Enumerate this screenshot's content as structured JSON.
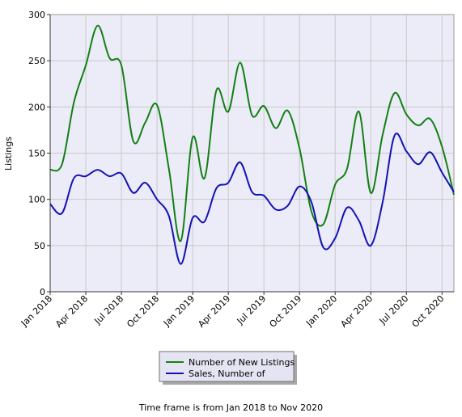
{
  "chart_data": {
    "type": "line",
    "ylabel": "Listings",
    "xlabel": "",
    "ylim": [
      0,
      300
    ],
    "yticks": [
      0,
      50,
      100,
      150,
      200,
      250,
      300
    ],
    "x": [
      "2018-01",
      "2018-02",
      "2018-03",
      "2018-04",
      "2018-05",
      "2018-06",
      "2018-07",
      "2018-08",
      "2018-09",
      "2018-10",
      "2018-11",
      "2018-12",
      "2019-01",
      "2019-02",
      "2019-03",
      "2019-04",
      "2019-05",
      "2019-06",
      "2019-07",
      "2019-08",
      "2019-09",
      "2019-10",
      "2019-11",
      "2019-12",
      "2020-01",
      "2020-02",
      "2020-03",
      "2020-04",
      "2020-05",
      "2020-06",
      "2020-07",
      "2020-08",
      "2020-09",
      "2020-10",
      "2020-11"
    ],
    "xtick_labels": [
      {
        "at": "2018-01",
        "label": "Jan 2018"
      },
      {
        "at": "2018-04",
        "label": "Apr 2018"
      },
      {
        "at": "2018-07",
        "label": "Jul 2018"
      },
      {
        "at": "2018-10",
        "label": "Oct 2018"
      },
      {
        "at": "2019-01",
        "label": "Jan 2019"
      },
      {
        "at": "2019-04",
        "label": "Apr 2019"
      },
      {
        "at": "2019-07",
        "label": "Jul 2019"
      },
      {
        "at": "2019-10",
        "label": "Oct 2019"
      },
      {
        "at": "2020-01",
        "label": "Jan 2020"
      },
      {
        "at": "2020-04",
        "label": "Apr 2020"
      },
      {
        "at": "2020-07",
        "label": "Jul 2020"
      },
      {
        "at": "2020-10",
        "label": "Oct 2020"
      }
    ],
    "series": [
      {
        "name": "Number of New Listings",
        "color": "#138013",
        "values": [
          132,
          138,
          205,
          245,
          288,
          253,
          245,
          163,
          183,
          202,
          133,
          55,
          167,
          123,
          218,
          195,
          248,
          191,
          201,
          177,
          196,
          155,
          87,
          73,
          116,
          133,
          195,
          107,
          170,
          215,
          192,
          180,
          187,
          157,
          105
        ]
      },
      {
        "name": "Sales, Number of",
        "color": "#1212b4",
        "values": [
          95,
          85,
          123,
          125,
          132,
          125,
          128,
          107,
          118,
          100,
          82,
          30,
          80,
          76,
          112,
          118,
          140,
          108,
          104,
          89,
          93,
          114,
          97,
          48,
          58,
          91,
          77,
          50,
          97,
          169,
          152,
          138,
          151,
          129,
          108
        ]
      }
    ],
    "grid": true,
    "legend_position": "bottom-center"
  },
  "footer": {
    "text": "Time frame is from Jan 2018 to Nov 2020"
  }
}
